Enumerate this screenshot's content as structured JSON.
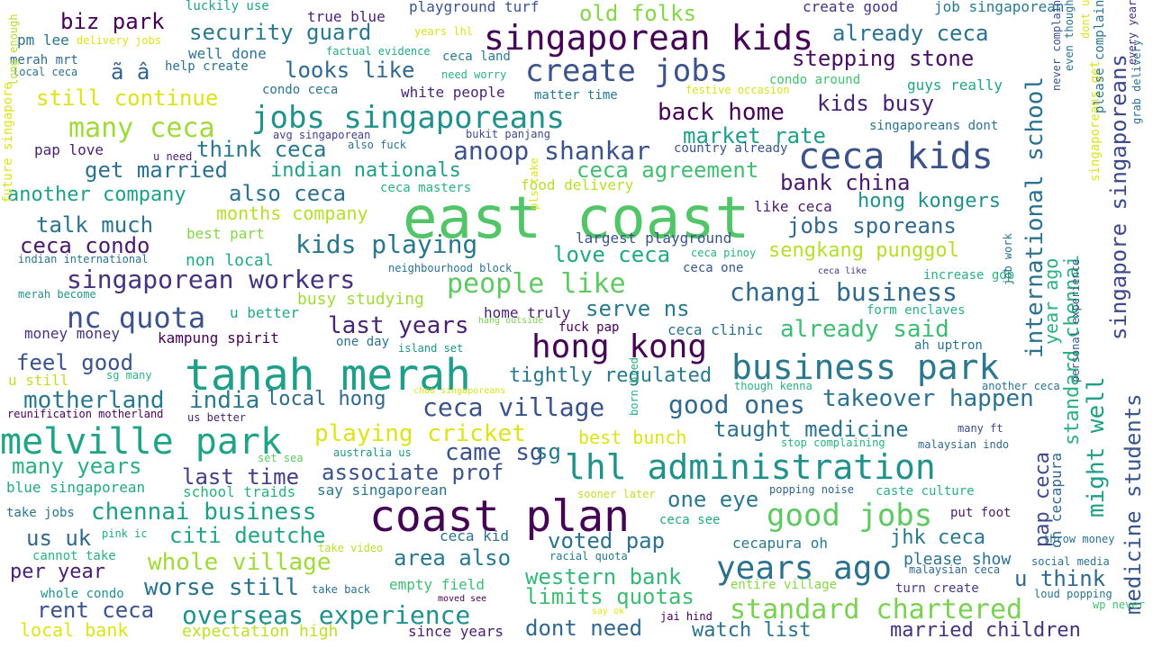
{
  "words": [
    {
      "text": "east coast",
      "color": "#52c569"
    },
    {
      "text": "coast plan",
      "color": "#440154"
    },
    {
      "text": "tanah merah",
      "color": "#1f9e89"
    },
    {
      "text": "melville park",
      "color": "#20a386"
    },
    {
      "text": "business park",
      "color": "#2a788e"
    },
    {
      "text": "lhl administration",
      "color": "#21918c"
    },
    {
      "text": "ceca kids",
      "color": "#3b528b"
    },
    {
      "text": "singaporean kids",
      "color": "#440154"
    },
    {
      "text": "years ago",
      "color": "#2c728e"
    },
    {
      "text": "hong kong",
      "color": "#440154"
    },
    {
      "text": "create jobs",
      "color": "#3b528b"
    },
    {
      "text": "jobs singaporeans",
      "color": "#21918c"
    },
    {
      "text": "good jobs",
      "color": "#5ec962"
    },
    {
      "text": "standard chartered",
      "color": "#7ad151"
    },
    {
      "text": "overseas experience",
      "color": "#21918c"
    },
    {
      "text": "people like",
      "color": "#5ec962"
    },
    {
      "text": "changi business",
      "color": "#31688e"
    },
    {
      "text": "ceca village",
      "color": "#3b528b"
    },
    {
      "text": "singaporean workers",
      "color": "#46327e"
    },
    {
      "text": "nc quota",
      "color": "#3b528b"
    },
    {
      "text": "many ceca",
      "color": "#a0da39"
    },
    {
      "text": "international school",
      "color": "#2c728e"
    },
    {
      "text": "singapore singaporeans",
      "color": "#3e4989"
    },
    {
      "text": "medicine students",
      "color": "#39568c"
    },
    {
      "text": "might well",
      "color": "#1f9e89"
    },
    {
      "text": "standard chennai",
      "color": "#2ab07f"
    },
    {
      "text": "pap ceca",
      "color": "#3e4989"
    },
    {
      "text": "chennai business",
      "color": "#1f9e89"
    },
    {
      "text": "whole village",
      "color": "#a0da39"
    },
    {
      "text": "worse still",
      "color": "#2c728e"
    },
    {
      "text": "western bank",
      "color": "#34b679"
    },
    {
      "text": "limits quotas",
      "color": "#3fbc73"
    },
    {
      "text": "dont need",
      "color": "#31688e"
    },
    {
      "text": "watch list",
      "color": "#2c728e"
    },
    {
      "text": "married children",
      "color": "#46327e"
    },
    {
      "text": "rent ceca",
      "color": "#3b528b"
    },
    {
      "text": "local bank",
      "color": "#dde318"
    },
    {
      "text": "expectation high",
      "color": "#bddf26"
    },
    {
      "text": "since years",
      "color": "#481f70"
    },
    {
      "text": "already ceca",
      "color": "#2c728e"
    },
    {
      "text": "stepping stone",
      "color": "#471063"
    },
    {
      "text": "kids busy",
      "color": "#482475"
    },
    {
      "text": "back home",
      "color": "#440154"
    },
    {
      "text": "market rate",
      "color": "#1f9e89"
    },
    {
      "text": "bank china",
      "color": "#481a6c"
    },
    {
      "text": "hong kongers",
      "color": "#21918c"
    },
    {
      "text": "jobs sporeans",
      "color": "#31688e"
    },
    {
      "text": "sengkang punggol",
      "color": "#b5de2b"
    },
    {
      "text": "ceca agreement",
      "color": "#42be71"
    },
    {
      "text": "anoop shankar",
      "color": "#3b528b"
    },
    {
      "text": "kids playing",
      "color": "#2a788e"
    },
    {
      "text": "love ceca",
      "color": "#22a884"
    },
    {
      "text": "ceca condo",
      "color": "#481a6c"
    },
    {
      "text": "talk much",
      "color": "#2c728e"
    },
    {
      "text": "another company",
      "color": "#1f9e89"
    },
    {
      "text": "also ceca",
      "color": "#2c728e"
    },
    {
      "text": "get married",
      "color": "#2c728e"
    },
    {
      "text": "indian nationals",
      "color": "#1f9e89"
    },
    {
      "text": "think ceca",
      "color": "#2a788e"
    },
    {
      "text": "still continue",
      "color": "#dde318"
    },
    {
      "text": "looks like",
      "color": "#31688e"
    },
    {
      "text": "security guard",
      "color": "#2a788e"
    },
    {
      "text": "biz park",
      "color": "#440154"
    },
    {
      "text": "old folks",
      "color": "#86d549"
    },
    {
      "text": "serve ns",
      "color": "#2a788e"
    },
    {
      "text": "last years",
      "color": "#482475"
    },
    {
      "text": "already said",
      "color": "#3fbc73"
    },
    {
      "text": "tightly regulated",
      "color": "#2a788e"
    },
    {
      "text": "good ones",
      "color": "#31688e"
    },
    {
      "text": "takeover happen",
      "color": "#2c728e"
    },
    {
      "text": "taught medicine",
      "color": "#2c728e"
    },
    {
      "text": "playing cricket",
      "color": "#dde318"
    },
    {
      "text": "best bunch",
      "color": "#dde318"
    },
    {
      "text": "came sg",
      "color": "#3b528b"
    },
    {
      "text": "associate prof",
      "color": "#3b528b"
    },
    {
      "text": "last time",
      "color": "#433e85"
    },
    {
      "text": "many years",
      "color": "#2ab07f"
    },
    {
      "text": "motherland",
      "color": "#2a788e"
    },
    {
      "text": "india",
      "color": "#2a788e"
    },
    {
      "text": "local hong",
      "color": "#31688e"
    },
    {
      "text": "feel good",
      "color": "#3b528b"
    },
    {
      "text": "one eye",
      "color": "#2a788e"
    },
    {
      "text": "voted pap",
      "color": "#2c728e"
    },
    {
      "text": "area also",
      "color": "#2a788e"
    },
    {
      "text": "citi deutche",
      "color": "#20a386"
    },
    {
      "text": "us uk",
      "color": "#31688e"
    },
    {
      "text": "per year",
      "color": "#481f70"
    },
    {
      "text": "jhk ceca",
      "color": "#2a788e"
    },
    {
      "text": "u think",
      "color": "#31688e"
    },
    {
      "text": "please show",
      "color": "#2c728e"
    },
    {
      "text": "oh cecapura",
      "color": "#31688e"
    },
    {
      "text": "year ago",
      "color": "#2ab07f"
    },
    {
      "text": "months company",
      "color": "#b5de2b"
    },
    {
      "text": "busy studying",
      "color": "#a0da39"
    },
    {
      "text": "ã â",
      "color": "#33638d"
    },
    {
      "text": "ceca clinic",
      "color": "#2c728e"
    },
    {
      "text": "cecapura oh",
      "color": "#2a788e"
    },
    {
      "text": "sg",
      "color": "#2a788e"
    },
    {
      "text": "empty field",
      "color": "#3fbc73"
    },
    {
      "text": "entire village",
      "color": "#86d549"
    },
    {
      "text": "turn create",
      "color": "#433e85"
    },
    {
      "text": "caste culture",
      "color": "#2ab07f"
    },
    {
      "text": "popping noise",
      "color": "#33638d"
    },
    {
      "text": "form enclaves",
      "color": "#2ab07f"
    },
    {
      "text": "ah uptron",
      "color": "#2c728e"
    },
    {
      "text": "luckily use",
      "color": "#20a386"
    },
    {
      "text": "true blue",
      "color": "#482475"
    },
    {
      "text": "playground turf",
      "color": "#3b528b"
    },
    {
      "text": "create good",
      "color": "#46327e"
    },
    {
      "text": "job singaporean",
      "color": "#2a788e"
    },
    {
      "text": "pm lee",
      "color": "#2c728e"
    },
    {
      "text": "delivery jobs",
      "color": "#dde318"
    },
    {
      "text": "years lhl",
      "color": "#d8e219"
    },
    {
      "text": "merah mrt",
      "color": "#31688e"
    },
    {
      "text": "factual evidence",
      "color": "#22a884"
    },
    {
      "text": "ceca land",
      "color": "#2a788e"
    },
    {
      "text": "local ceca",
      "color": "#2c728e"
    },
    {
      "text": "help create",
      "color": "#2c728e"
    },
    {
      "text": "well done",
      "color": "#2c728e"
    },
    {
      "text": "need worry",
      "color": "#2ab07f"
    },
    {
      "text": "condo around",
      "color": "#42be71"
    },
    {
      "text": "guys really",
      "color": "#20a386"
    },
    {
      "text": "white people",
      "color": "#482475"
    },
    {
      "text": "matter time",
      "color": "#2a788e"
    },
    {
      "text": "festive occasion",
      "color": "#d8e219"
    },
    {
      "text": "condo ceca",
      "color": "#2c728e"
    },
    {
      "text": "singaporeans dont",
      "color": "#2c728e"
    },
    {
      "text": "avg singaporean",
      "color": "#433e85"
    },
    {
      "text": "bukit panjang",
      "color": "#3e4989"
    },
    {
      "text": "also fuck",
      "color": "#2c728e"
    },
    {
      "text": "country already",
      "color": "#3b528b"
    },
    {
      "text": "pap love",
      "color": "#481f70"
    },
    {
      "text": "u need",
      "color": "#481f70"
    },
    {
      "text": "ceca masters",
      "color": "#2ab07f"
    },
    {
      "text": "food delivery",
      "color": "#b5de2b"
    },
    {
      "text": "like ceca",
      "color": "#481f70"
    },
    {
      "text": "best part",
      "color": "#86d549"
    },
    {
      "text": "largest playground",
      "color": "#3b528b"
    },
    {
      "text": "indian international",
      "color": "#2c728e"
    },
    {
      "text": "non local",
      "color": "#22a884"
    },
    {
      "text": "ceca pinoy",
      "color": "#2ab07f"
    },
    {
      "text": "ceca one",
      "color": "#39568c"
    },
    {
      "text": "neighbourhood block",
      "color": "#2c728e"
    },
    {
      "text": "ceca like",
      "color": "#46327e"
    },
    {
      "text": "increase gdp",
      "color": "#2ab07f"
    },
    {
      "text": "merah become",
      "color": "#21918c"
    },
    {
      "text": "u better",
      "color": "#22a884"
    },
    {
      "text": "home truly",
      "color": "#481f70"
    },
    {
      "text": "fuck pap",
      "color": "#440154"
    },
    {
      "text": "hang outside",
      "color": "#7ad151"
    },
    {
      "text": "money money",
      "color": "#46327e"
    },
    {
      "text": "kampung spirit",
      "color": "#440154"
    },
    {
      "text": "one day",
      "color": "#2c728e"
    },
    {
      "text": "island set",
      "color": "#21918c"
    },
    {
      "text": "sg many",
      "color": "#2ab07f"
    },
    {
      "text": "u still",
      "color": "#bddf26"
    },
    {
      "text": "though kenna",
      "color": "#2ab07f"
    },
    {
      "text": "another ceca",
      "color": "#2c728e"
    },
    {
      "text": "chao singaporeans",
      "color": "#d8e219"
    },
    {
      "text": "reunification motherland",
      "color": "#440154"
    },
    {
      "text": "us better",
      "color": "#481f70"
    },
    {
      "text": "many ft",
      "color": "#3e4989"
    },
    {
      "text": "malaysian indo",
      "color": "#31688e"
    },
    {
      "text": "stop complaining",
      "color": "#2ab07f"
    },
    {
      "text": "set sea",
      "color": "#5ec962"
    },
    {
      "text": "australia us",
      "color": "#21918c"
    },
    {
      "text": "blue singaporean",
      "color": "#22a884"
    },
    {
      "text": "school traids",
      "color": "#2ab07f"
    },
    {
      "text": "say singaporean",
      "color": "#2c728e"
    },
    {
      "text": "sooner later",
      "color": "#bddf26"
    },
    {
      "text": "take jobs",
      "color": "#2c728e"
    },
    {
      "text": "pink ic",
      "color": "#22a884"
    },
    {
      "text": "ceca kid",
      "color": "#2c728e"
    },
    {
      "text": "ceca see",
      "color": "#22a884"
    },
    {
      "text": "put foot",
      "color": "#481f70"
    },
    {
      "text": "throw money",
      "color": "#2c728e"
    },
    {
      "text": "take video",
      "color": "#b5de2b"
    },
    {
      "text": "racial quota",
      "color": "#2a788e"
    },
    {
      "text": "social media",
      "color": "#2c728e"
    },
    {
      "text": "cannot take",
      "color": "#2ab07f"
    },
    {
      "text": "malaysian ceca",
      "color": "#31688e"
    },
    {
      "text": "take back",
      "color": "#2c728e"
    },
    {
      "text": "whole condo",
      "color": "#21918c"
    },
    {
      "text": "moved see",
      "color": "#440154"
    },
    {
      "text": "say ok",
      "color": "#dde318"
    },
    {
      "text": "loud popping",
      "color": "#2c728e"
    },
    {
      "text": "jai hind",
      "color": "#440154"
    },
    {
      "text": "wp never",
      "color": "#42be71"
    },
    {
      "text": "born bred",
      "color": "#2ab07f"
    },
    {
      "text": "pls take",
      "color": "#d8e219"
    },
    {
      "text": "long enough",
      "color": "#b5de2b"
    },
    {
      "text": "future singapore",
      "color": "#dde318"
    },
    {
      "text": "job work",
      "color": "#2c728e"
    },
    {
      "text": "singaporeans get",
      "color": "#dde318"
    },
    {
      "text": "personal experience",
      "color": "#39568c"
    },
    {
      "text": "never complain",
      "color": "#3b528b"
    },
    {
      "text": "even though",
      "color": "#2c728e"
    },
    {
      "text": "please complain",
      "color": "#2c728e"
    },
    {
      "text": "dont u",
      "color": "#dde318"
    },
    {
      "text": "every year",
      "color": "#46327e"
    },
    {
      "text": "grab delivery",
      "color": "#2c728e"
    }
  ]
}
